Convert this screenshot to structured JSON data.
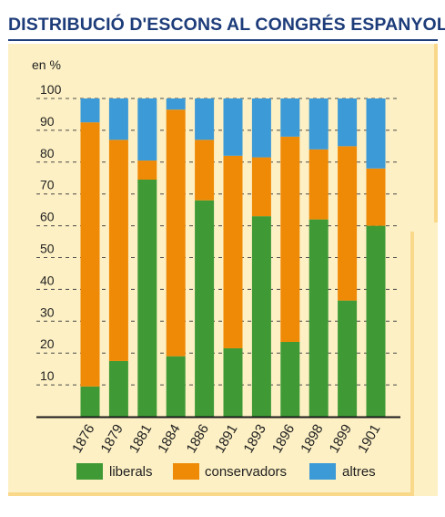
{
  "title": "DISTRIBUCIÓ D'ESCONS AL CONGRÉS ESPANYOL",
  "colors": {
    "liberals": "#3f9a35",
    "conservadors": "#ef8a07",
    "altres": "#3c9ad6",
    "title": "#1d3c7a",
    "panel": "#fdf0c4"
  },
  "chart_data": {
    "type": "bar",
    "stacked": true,
    "title": "DISTRIBUCIÓ D'ESCONS AL CONGRÉS ESPANYOL",
    "ylabel": "en %",
    "xlabel": "",
    "ylim": [
      0,
      100
    ],
    "yticks": [
      "10",
      "20",
      "30",
      "40",
      "50",
      "60",
      "70",
      "80",
      "90",
      "100"
    ],
    "categories": [
      "1876",
      "1879",
      "1881",
      "1884",
      "1886",
      "1891",
      "1893",
      "1896",
      "1898",
      "1899",
      "1901"
    ],
    "series": [
      {
        "name": "liberals",
        "color": "#3f9a35",
        "values": [
          9.5,
          17.5,
          74.5,
          19,
          68,
          21.5,
          63,
          23.5,
          62,
          36.5,
          60
        ]
      },
      {
        "name": "conservadors",
        "color": "#ef8a07",
        "values": [
          83,
          69.5,
          6,
          77.5,
          19,
          60.5,
          18.5,
          64.5,
          22,
          48.5,
          18
        ]
      },
      {
        "name": "altres",
        "color": "#3c9ad6",
        "values": [
          7.5,
          13,
          19.5,
          3.5,
          13,
          18,
          18.5,
          12,
          16,
          15,
          22
        ]
      }
    ],
    "legend_position": "bottom",
    "grid": "dashed horizontal"
  }
}
